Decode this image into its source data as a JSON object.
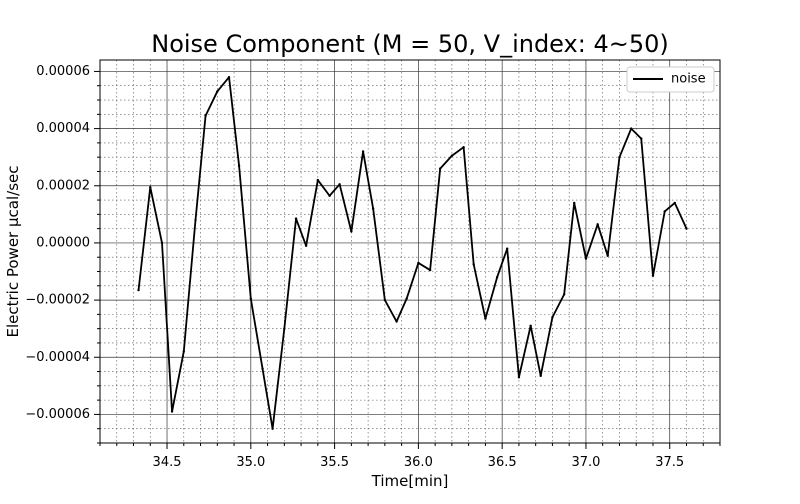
{
  "chart_data": {
    "type": "line",
    "title": "Noise Component (M = 50, V_index: 4~50)",
    "xlabel": "Time[min]",
    "ylabel": "Electric Power µcal/sec",
    "xlim": [
      34.1,
      37.8
    ],
    "ylim": [
      -7e-05,
      6.4e-05
    ],
    "xticks": [
      34.5,
      35.0,
      35.5,
      36.0,
      36.5,
      37.0,
      37.5
    ],
    "xtick_labels": [
      "34.5",
      "35.0",
      "35.5",
      "36.0",
      "36.5",
      "37.0",
      "37.5"
    ],
    "yticks": [
      -6e-05,
      -4e-05,
      -2e-05,
      0.0,
      2e-05,
      4e-05,
      6e-05
    ],
    "ytick_labels": [
      "−0.00006",
      "−0.00004",
      "−0.00002",
      "0.00000",
      "0.00002",
      "0.00004",
      "0.00006"
    ],
    "x_minor_step": 0.1,
    "y_minor_step": 5e-06,
    "grid": true,
    "legend_position": "upper right",
    "series": [
      {
        "name": "noise",
        "color": "#000000",
        "x": [
          34.33,
          34.4,
          34.47,
          34.53,
          34.6,
          34.67,
          34.73,
          34.8,
          34.87,
          34.93,
          35.0,
          35.07,
          35.13,
          35.2,
          35.27,
          35.33,
          35.4,
          35.47,
          35.53,
          35.6,
          35.67,
          35.73,
          35.8,
          35.87,
          35.93,
          36.0,
          36.07,
          36.13,
          36.2,
          36.27,
          36.33,
          36.4,
          36.47,
          36.53,
          36.6,
          36.67,
          36.73,
          36.8,
          36.87,
          36.93,
          37.0,
          37.07,
          37.13,
          37.2,
          37.27,
          37.33,
          37.4,
          37.47,
          37.53,
          37.6
        ],
        "y": [
          -1.65e-05,
          1.95e-05,
          0.0,
          -5.9e-05,
          -3.8e-05,
          8e-06,
          4.45e-05,
          5.3e-05,
          5.8e-05,
          2.7e-05,
          -1.95e-05,
          -4.4e-05,
          -6.5e-05,
          -3e-05,
          8.5e-06,
          -1e-06,
          2.2e-05,
          1.65e-05,
          2.05e-05,
          4e-06,
          3.2e-05,
          1.2e-05,
          -2e-05,
          -2.75e-05,
          -1.95e-05,
          -7e-06,
          -9.5e-06,
          2.6e-05,
          3.05e-05,
          3.35e-05,
          -7.5e-06,
          -2.65e-05,
          -1.2e-05,
          -2e-06,
          -4.7e-05,
          -2.9e-05,
          -4.65e-05,
          -2.6e-05,
          -1.8e-05,
          1.4e-05,
          -5.5e-06,
          6.5e-06,
          -4.5e-06,
          3e-05,
          4e-05,
          3.65e-05,
          -1.15e-05,
          1.1e-05,
          1.4e-05,
          5e-06
        ]
      }
    ]
  }
}
